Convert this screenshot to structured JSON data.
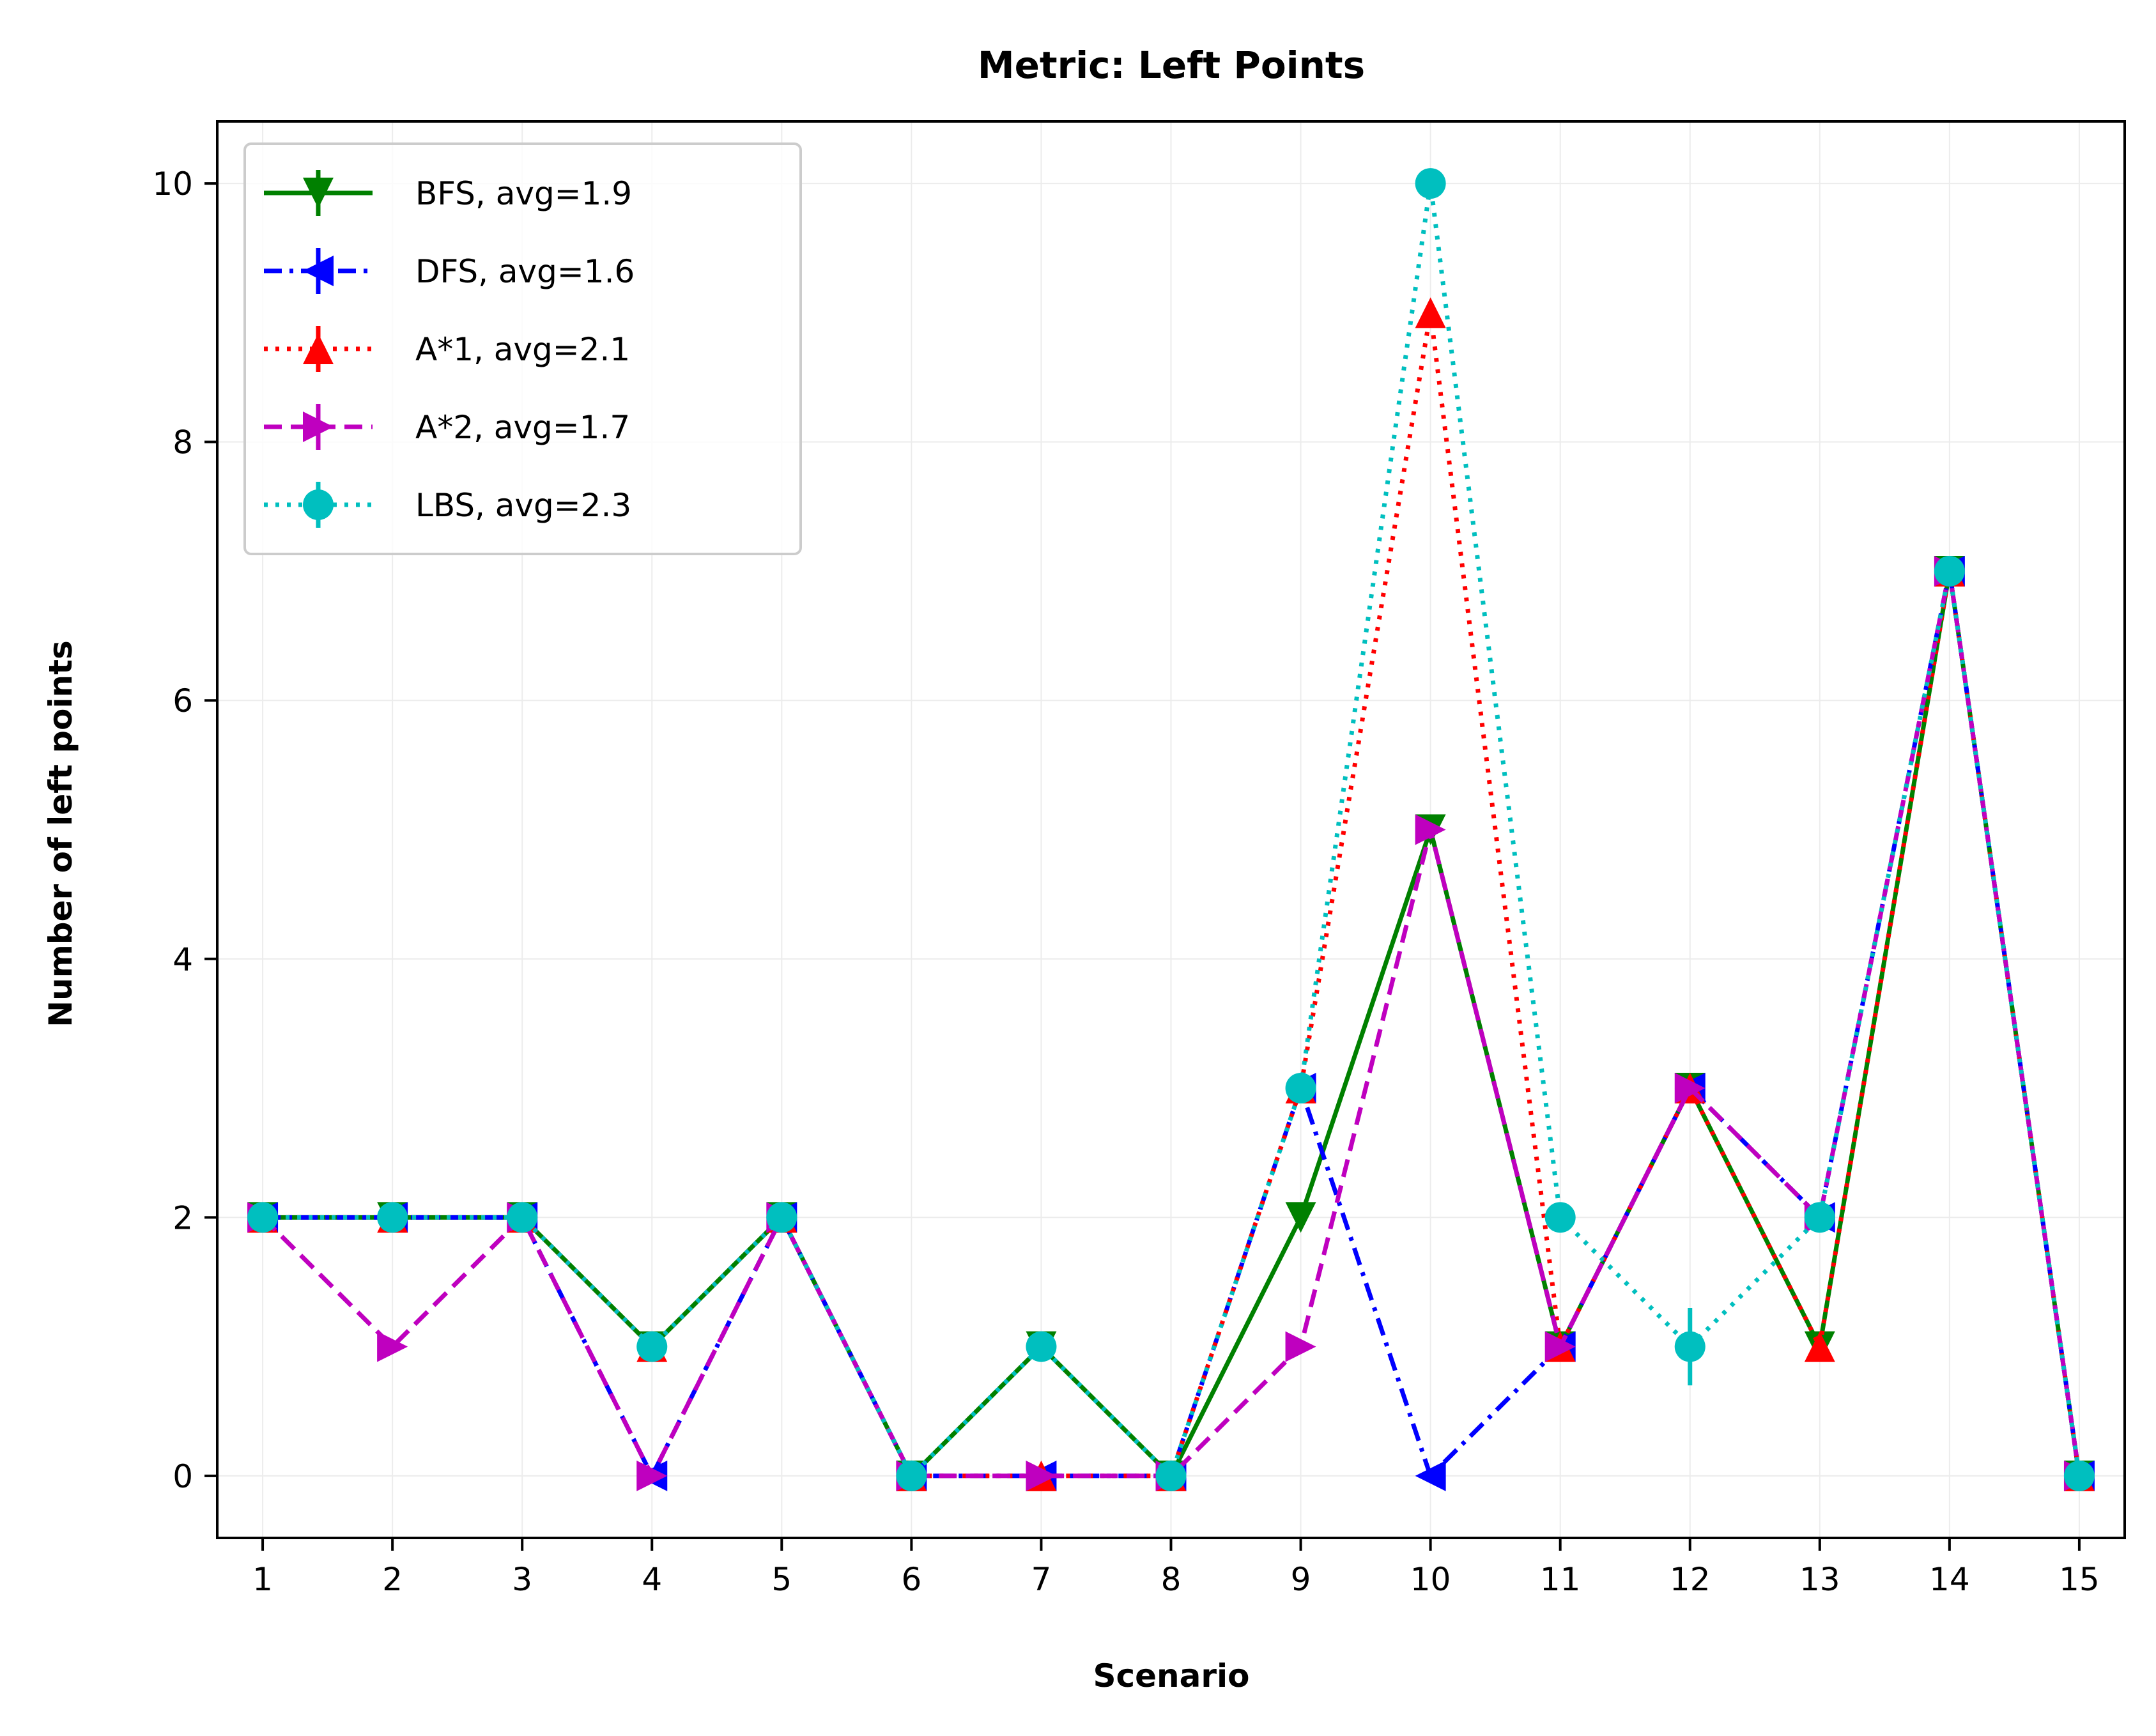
{
  "chart_data": {
    "type": "line",
    "title": "Metric: Left Points",
    "xlabel": "Scenario",
    "ylabel": "Number of left points",
    "x": [
      1,
      2,
      3,
      4,
      5,
      6,
      7,
      8,
      9,
      10,
      11,
      12,
      13,
      14,
      15
    ],
    "xlim": [
      0.65,
      15.35
    ],
    "ylim": [
      -0.48,
      10.48
    ],
    "yticks": [
      0,
      2,
      4,
      6,
      8,
      10
    ],
    "grid": true,
    "legend_position": "top-left",
    "series": [
      {
        "name": "BFS, avg=1.9",
        "color": "#008000",
        "marker": "triangle-down",
        "linestyle": "solid",
        "values": [
          2,
          2,
          2,
          1,
          2,
          0,
          1,
          0,
          2,
          5,
          1,
          3,
          1,
          7,
          0
        ]
      },
      {
        "name": "DFS, avg=1.6",
        "color": "#0000ff",
        "marker": "triangle-left",
        "linestyle": "dashdot",
        "values": [
          2,
          2,
          2,
          0,
          2,
          0,
          0,
          0,
          3,
          0,
          1,
          3,
          2,
          7,
          0
        ]
      },
      {
        "name": "A*1, avg=2.1",
        "color": "#ff0000",
        "marker": "triangle-up",
        "linestyle": "dotted",
        "values": [
          2,
          2,
          2,
          1,
          2,
          0,
          0,
          0,
          3,
          9,
          1,
          3,
          1,
          7,
          0
        ]
      },
      {
        "name": "A*2, avg=1.7",
        "color": "#bf00bf",
        "marker": "triangle-right",
        "linestyle": "dashed",
        "values": [
          2,
          1,
          2,
          0,
          2,
          0,
          0,
          0,
          1,
          5,
          1,
          3,
          2,
          7,
          0
        ]
      },
      {
        "name": "LBS, avg=2.3",
        "color": "#00bfbf",
        "marker": "circle",
        "linestyle": "dotted",
        "values": [
          2,
          2,
          2,
          1,
          2,
          0,
          1,
          0,
          3,
          10,
          2,
          1,
          2,
          7,
          0
        ],
        "error": [
          0,
          0,
          0,
          0,
          0,
          0,
          0,
          0,
          0,
          0,
          0,
          0.3,
          0,
          0,
          0
        ]
      }
    ]
  }
}
